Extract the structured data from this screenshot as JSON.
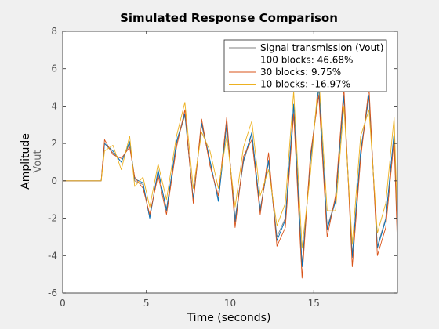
{
  "window": {
    "background": "#f0f0f0"
  },
  "chart_data": {
    "type": "line",
    "title": "Simulated Response Comparison",
    "xlabel": "Time (seconds)",
    "ylabel": "Amplitude",
    "ylabel_sub": "Vout",
    "xlim": [
      0,
      20
    ],
    "ylim": [
      -6,
      8
    ],
    "xticks": [
      0,
      5,
      10,
      15
    ],
    "yticks": [
      -6,
      -4,
      -2,
      0,
      2,
      4,
      6,
      8
    ],
    "grid": false,
    "legend_position": "top-right",
    "series": [
      {
        "name": "Signal transmission (Vout)",
        "color": "#808080",
        "x": [
          0,
          2.3,
          2.5,
          3.0,
          3.5,
          4.0,
          4.3,
          4.8,
          5.2,
          5.7,
          6.2,
          6.8,
          7.3,
          7.8,
          8.3,
          8.8,
          9.3,
          9.8,
          10.3,
          10.8,
          11.3,
          11.8,
          12.3,
          12.8,
          13.3,
          13.8,
          14.3,
          14.8,
          15.3,
          15.8,
          16.3,
          16.8,
          17.3,
          17.8,
          18.3,
          18.8,
          19.3,
          19.8,
          20.0
        ],
        "y": [
          0,
          0,
          2.0,
          1.5,
          1.0,
          2.0,
          0.0,
          -0.2,
          -2.0,
          0.5,
          -1.5,
          2.0,
          3.5,
          -1.0,
          3.0,
          1.0,
          -1.0,
          3.0,
          -2.0,
          1.0,
          2.5,
          -1.5,
          1.0,
          -3.0,
          -2.0,
          4.0,
          -4.5,
          1.0,
          5.0,
          -2.5,
          -1.0,
          4.5,
          -4.0,
          1.5,
          4.5,
          -3.5,
          -2.0,
          2.5,
          -3.0
        ]
      },
      {
        "name": "100 blocks: 46.68%",
        "color": "#0072bd",
        "x": [
          0,
          2.3,
          2.5,
          3.0,
          3.5,
          4.0,
          4.3,
          4.8,
          5.2,
          5.7,
          6.2,
          6.8,
          7.3,
          7.8,
          8.3,
          8.8,
          9.3,
          9.8,
          10.3,
          10.8,
          11.3,
          11.8,
          12.3,
          12.8,
          13.3,
          13.8,
          14.3,
          14.8,
          15.3,
          15.8,
          16.3,
          16.8,
          17.3,
          17.8,
          18.3,
          18.8,
          19.3,
          19.8,
          20.0
        ],
        "y": [
          0,
          0,
          2.0,
          1.6,
          1.0,
          2.1,
          0.1,
          -0.1,
          -2.0,
          0.6,
          -1.6,
          2.1,
          3.6,
          -1.0,
          3.1,
          1.1,
          -1.1,
          3.1,
          -2.2,
          1.1,
          2.6,
          -1.6,
          1.1,
          -3.2,
          -2.1,
          4.1,
          -4.6,
          1.1,
          5.1,
          -2.6,
          -1.1,
          4.6,
          -4.1,
          1.6,
          4.6,
          -3.6,
          -2.1,
          2.6,
          -3.1
        ]
      },
      {
        "name": "30 blocks: 9.75%",
        "color": "#d95319",
        "x": [
          0,
          2.3,
          2.5,
          3.0,
          3.5,
          4.0,
          4.3,
          4.8,
          5.2,
          5.7,
          6.2,
          6.8,
          7.3,
          7.8,
          8.3,
          8.8,
          9.3,
          9.8,
          10.3,
          10.8,
          11.3,
          11.8,
          12.3,
          12.8,
          13.3,
          13.8,
          14.3,
          14.8,
          15.3,
          15.8,
          16.3,
          16.8,
          17.3,
          17.8,
          18.3,
          18.8,
          19.3,
          19.8,
          20.0
        ],
        "y": [
          0,
          0,
          2.2,
          1.4,
          1.2,
          1.8,
          0.2,
          -0.4,
          -1.8,
          0.3,
          -1.8,
          1.8,
          3.8,
          -1.2,
          3.3,
          0.8,
          -0.8,
          3.4,
          -2.5,
          1.3,
          2.2,
          -1.8,
          1.5,
          -3.5,
          -2.5,
          3.6,
          -5.2,
          1.4,
          4.6,
          -3.0,
          -0.8,
          5.0,
          -4.6,
          1.2,
          5.0,
          -4.0,
          -2.5,
          2.2,
          -3.5
        ]
      },
      {
        "name": "10 blocks: -16.97%",
        "color": "#edb120",
        "x": [
          0,
          2.3,
          2.5,
          3.0,
          3.5,
          4.0,
          4.3,
          4.8,
          5.2,
          5.7,
          6.2,
          6.8,
          7.3,
          7.8,
          8.3,
          8.8,
          9.3,
          9.8,
          10.3,
          10.8,
          11.3,
          11.8,
          12.3,
          12.8,
          13.3,
          13.8,
          14.3,
          14.8,
          15.3,
          15.8,
          16.3,
          16.8,
          17.3,
          17.8,
          18.3,
          18.8,
          19.3,
          19.8,
          20.0
        ],
        "y": [
          0,
          0,
          1.6,
          1.9,
          0.6,
          2.4,
          -0.3,
          0.2,
          -1.4,
          0.9,
          -1.0,
          2.4,
          4.2,
          -0.4,
          2.6,
          1.6,
          -0.4,
          2.4,
          -1.4,
          1.8,
          3.2,
          -0.8,
          0.6,
          -2.4,
          -1.2,
          4.8,
          -3.6,
          0.4,
          5.6,
          -1.6,
          -1.6,
          4.0,
          -3.4,
          2.4,
          3.8,
          -2.8,
          -1.2,
          3.4,
          -2.2
        ]
      }
    ]
  }
}
